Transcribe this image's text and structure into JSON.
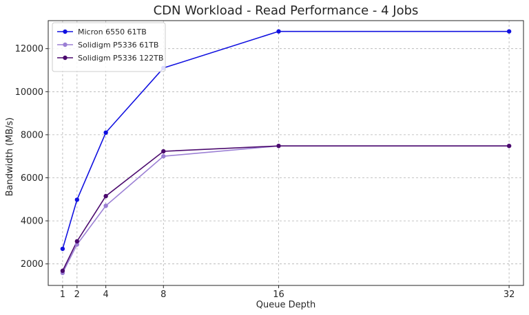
{
  "chart_data": {
    "type": "line",
    "title": "CDN Workload - Read Performance - 4 Jobs",
    "xlabel": "Queue Depth",
    "ylabel": "Bandwidth (MB/s)",
    "x": [
      1,
      2,
      4,
      8,
      16,
      32
    ],
    "xticks": [
      1,
      2,
      4,
      8,
      16,
      32
    ],
    "xlim": [
      0,
      33
    ],
    "yticks": [
      2000,
      4000,
      6000,
      8000,
      10000,
      12000
    ],
    "ylim": [
      1000,
      13300
    ],
    "grid": true,
    "legend_position": "top-left",
    "series": [
      {
        "name": "Micron 6550 61TB",
        "color": "#1010e0",
        "values": [
          2700,
          4980,
          8100,
          11100,
          12800,
          12800
        ]
      },
      {
        "name": "Solidigm P5336 61TB",
        "color": "#9b7fd4",
        "values": [
          1580,
          2900,
          4700,
          7000,
          7480,
          7480
        ]
      },
      {
        "name": "Solidigm P5336 122TB",
        "color": "#4b0a6e",
        "values": [
          1680,
          3050,
          5150,
          7230,
          7480,
          7480
        ]
      }
    ]
  }
}
